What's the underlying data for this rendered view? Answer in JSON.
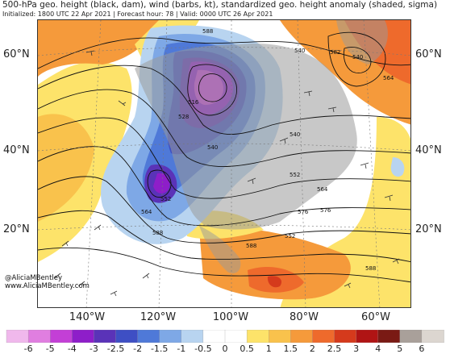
{
  "title": {
    "main": "500-hPa geo. height (black, dam), wind (barbs, kt), standardized geo. height anomaly (shaded, sigma)",
    "info": "Initialized: 1800 UTC 22 Apr 2021 | Forecast hour: 78 | Valid: 0000 UTC 26 Apr 2021"
  },
  "latitude_labels": [
    "60°N",
    "40°N",
    "20°N"
  ],
  "longitude_labels": [
    "140°W",
    "120°W",
    "100°W",
    "80°W",
    "60°W"
  ],
  "contour_labels": [
    "588",
    "540",
    "582",
    "564",
    "516",
    "528",
    "540",
    "540",
    "552",
    "564",
    "576",
    "576",
    "552",
    "564",
    "540",
    "588",
    "588",
    "552",
    "588"
  ],
  "credits": {
    "handle": "@AliciaMBentley",
    "website": "www.AliciaMBentley.com"
  },
  "colorbar": {
    "labels": [
      "-6",
      "-5",
      "-4",
      "-3",
      "-2.5",
      "-2",
      "-1.5",
      "-1",
      "-0.5",
      "0",
      "0.5",
      "1",
      "1.5",
      "2",
      "2.5",
      "3",
      "4",
      "5",
      "6"
    ],
    "colors": [
      "#f0b8ec",
      "#e07ee0",
      "#c33fd6",
      "#8e1ec9",
      "#5a33b8",
      "#3e4fc4",
      "#4f79d8",
      "#7ea8e6",
      "#b8d4f0",
      "#ffffff",
      "#ffffff",
      "#fde36a",
      "#f9c24c",
      "#f59a3b",
      "#ee6a2c",
      "#d53a1c",
      "#b01414",
      "#7a1a14",
      "#a9a09a",
      "#dcd6d0"
    ]
  },
  "colors": {
    "land": "#9a9a9a",
    "ocean": "#ffffff",
    "contour": "#111111"
  }
}
